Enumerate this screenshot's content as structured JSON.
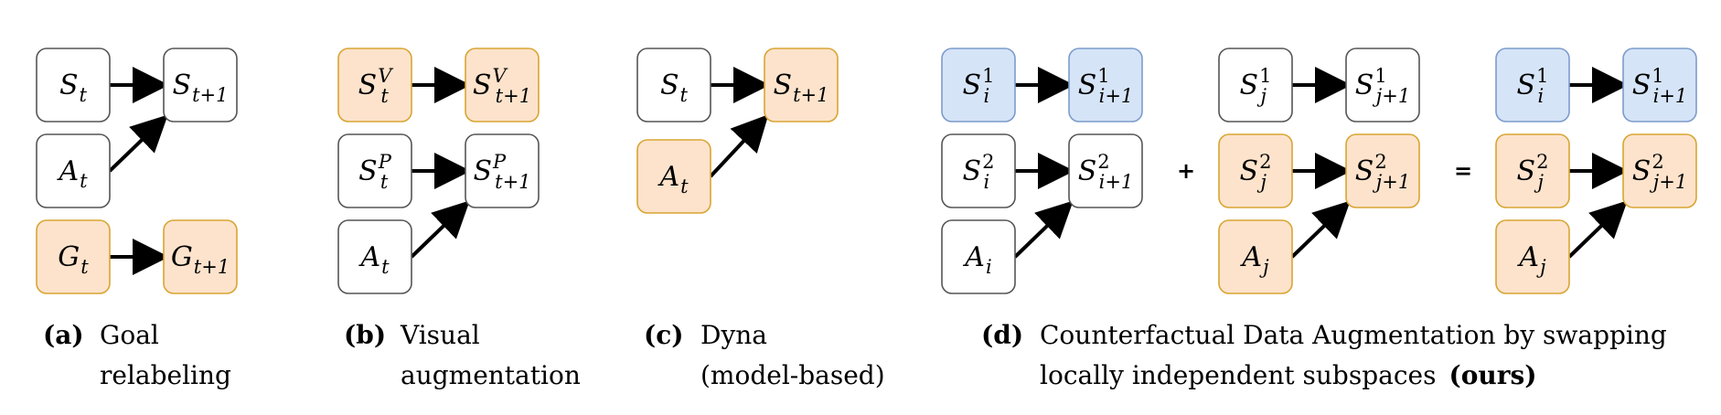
{
  "colors": {
    "white_fill": "#ffffff",
    "white_stroke": "#555555",
    "orange_fill": "#fde3cc",
    "orange_stroke": "#d8a532",
    "blue_fill": "#d6e4f7",
    "blue_stroke": "#7c9ccc"
  },
  "nodes": [
    {
      "id": "a-st",
      "base": "S",
      "sub": "t",
      "sup": "",
      "color": "white"
    },
    {
      "id": "a-st1",
      "base": "S",
      "sub": "t+1",
      "sup": "",
      "color": "white"
    },
    {
      "id": "a-at",
      "base": "A",
      "sub": "t",
      "sup": "",
      "color": "white"
    },
    {
      "id": "a-gt",
      "base": "G",
      "sub": "t",
      "sup": "",
      "color": "orange"
    },
    {
      "id": "a-gt1",
      "base": "G",
      "sub": "t+1",
      "sup": "",
      "color": "orange"
    },
    {
      "id": "b-sv",
      "base": "S",
      "sub": "t",
      "sup": "V",
      "color": "orange"
    },
    {
      "id": "b-sv1",
      "base": "S",
      "sub": "t+1",
      "sup": "V",
      "color": "orange"
    },
    {
      "id": "b-sp",
      "base": "S",
      "sub": "t",
      "sup": "P",
      "color": "white"
    },
    {
      "id": "b-sp1",
      "base": "S",
      "sub": "t+1",
      "sup": "P",
      "color": "white"
    },
    {
      "id": "b-at",
      "base": "A",
      "sub": "t",
      "sup": "",
      "color": "white"
    },
    {
      "id": "c-st",
      "base": "S",
      "sub": "t",
      "sup": "",
      "color": "white"
    },
    {
      "id": "c-st1",
      "base": "S",
      "sub": "t+1",
      "sup": "",
      "color": "orange"
    },
    {
      "id": "c-at",
      "base": "A",
      "sub": "t",
      "sup": "",
      "color": "orange"
    },
    {
      "id": "d1-s1",
      "base": "S",
      "sub": "i",
      "sup": "1",
      "color": "blue"
    },
    {
      "id": "d1-s1n",
      "base": "S",
      "sub": "i+1",
      "sup": "1",
      "color": "blue"
    },
    {
      "id": "d1-s2",
      "base": "S",
      "sub": "i",
      "sup": "2",
      "color": "white"
    },
    {
      "id": "d1-s2n",
      "base": "S",
      "sub": "i+1",
      "sup": "2",
      "color": "white"
    },
    {
      "id": "d1-a",
      "base": "A",
      "sub": "i",
      "sup": "",
      "color": "white"
    },
    {
      "id": "d2-s1",
      "base": "S",
      "sub": "j",
      "sup": "1",
      "color": "white"
    },
    {
      "id": "d2-s1n",
      "base": "S",
      "sub": "j+1",
      "sup": "1",
      "color": "white"
    },
    {
      "id": "d2-s2",
      "base": "S",
      "sub": "j",
      "sup": "2",
      "color": "orange"
    },
    {
      "id": "d2-s2n",
      "base": "S",
      "sub": "j+1",
      "sup": "2",
      "color": "orange"
    },
    {
      "id": "d2-a",
      "base": "A",
      "sub": "j",
      "sup": "",
      "color": "orange"
    },
    {
      "id": "d3-s1",
      "base": "S",
      "sub": "i",
      "sup": "1",
      "color": "blue"
    },
    {
      "id": "d3-s1n",
      "base": "S",
      "sub": "i+1",
      "sup": "1",
      "color": "blue"
    },
    {
      "id": "d3-s2",
      "base": "S",
      "sub": "j",
      "sup": "2",
      "color": "orange"
    },
    {
      "id": "d3-s2n",
      "base": "S",
      "sub": "j+1",
      "sup": "2",
      "color": "orange"
    },
    {
      "id": "d3-a",
      "base": "A",
      "sub": "j",
      "sup": "",
      "color": "orange"
    }
  ],
  "edges": [
    {
      "from": "a-st",
      "to": "a-st1"
    },
    {
      "from": "a-at",
      "to": "a-st1"
    },
    {
      "from": "a-gt",
      "to": "a-gt1"
    },
    {
      "from": "b-sv",
      "to": "b-sv1"
    },
    {
      "from": "b-sp",
      "to": "b-sp1"
    },
    {
      "from": "b-at",
      "to": "b-sp1"
    },
    {
      "from": "c-st",
      "to": "c-st1"
    },
    {
      "from": "c-at",
      "to": "c-st1"
    },
    {
      "from": "d1-s1",
      "to": "d1-s1n"
    },
    {
      "from": "d1-s2",
      "to": "d1-s2n"
    },
    {
      "from": "d1-a",
      "to": "d1-s2n"
    },
    {
      "from": "d2-s1",
      "to": "d2-s1n"
    },
    {
      "from": "d2-s2",
      "to": "d2-s2n"
    },
    {
      "from": "d2-a",
      "to": "d2-s2n"
    },
    {
      "from": "d3-s1",
      "to": "d3-s1n"
    },
    {
      "from": "d3-s2",
      "to": "d3-s2n"
    },
    {
      "from": "d3-a",
      "to": "d3-s2n"
    }
  ],
  "operators": {
    "plus": "+",
    "equals": "="
  },
  "captions": {
    "a": {
      "tag": "(a)",
      "line1": "Goal",
      "line2": "relabeling"
    },
    "b": {
      "tag": "(b)",
      "line1": "Visual",
      "line2": "augmentation"
    },
    "c": {
      "tag": "(c)",
      "line1": "Dyna",
      "line2": "(model-based)"
    },
    "d": {
      "tag": "(d)",
      "line1": "Counterfactual Data Augmentation by swapping",
      "line2": "locally independent subspaces",
      "ours": "(ours)"
    }
  }
}
